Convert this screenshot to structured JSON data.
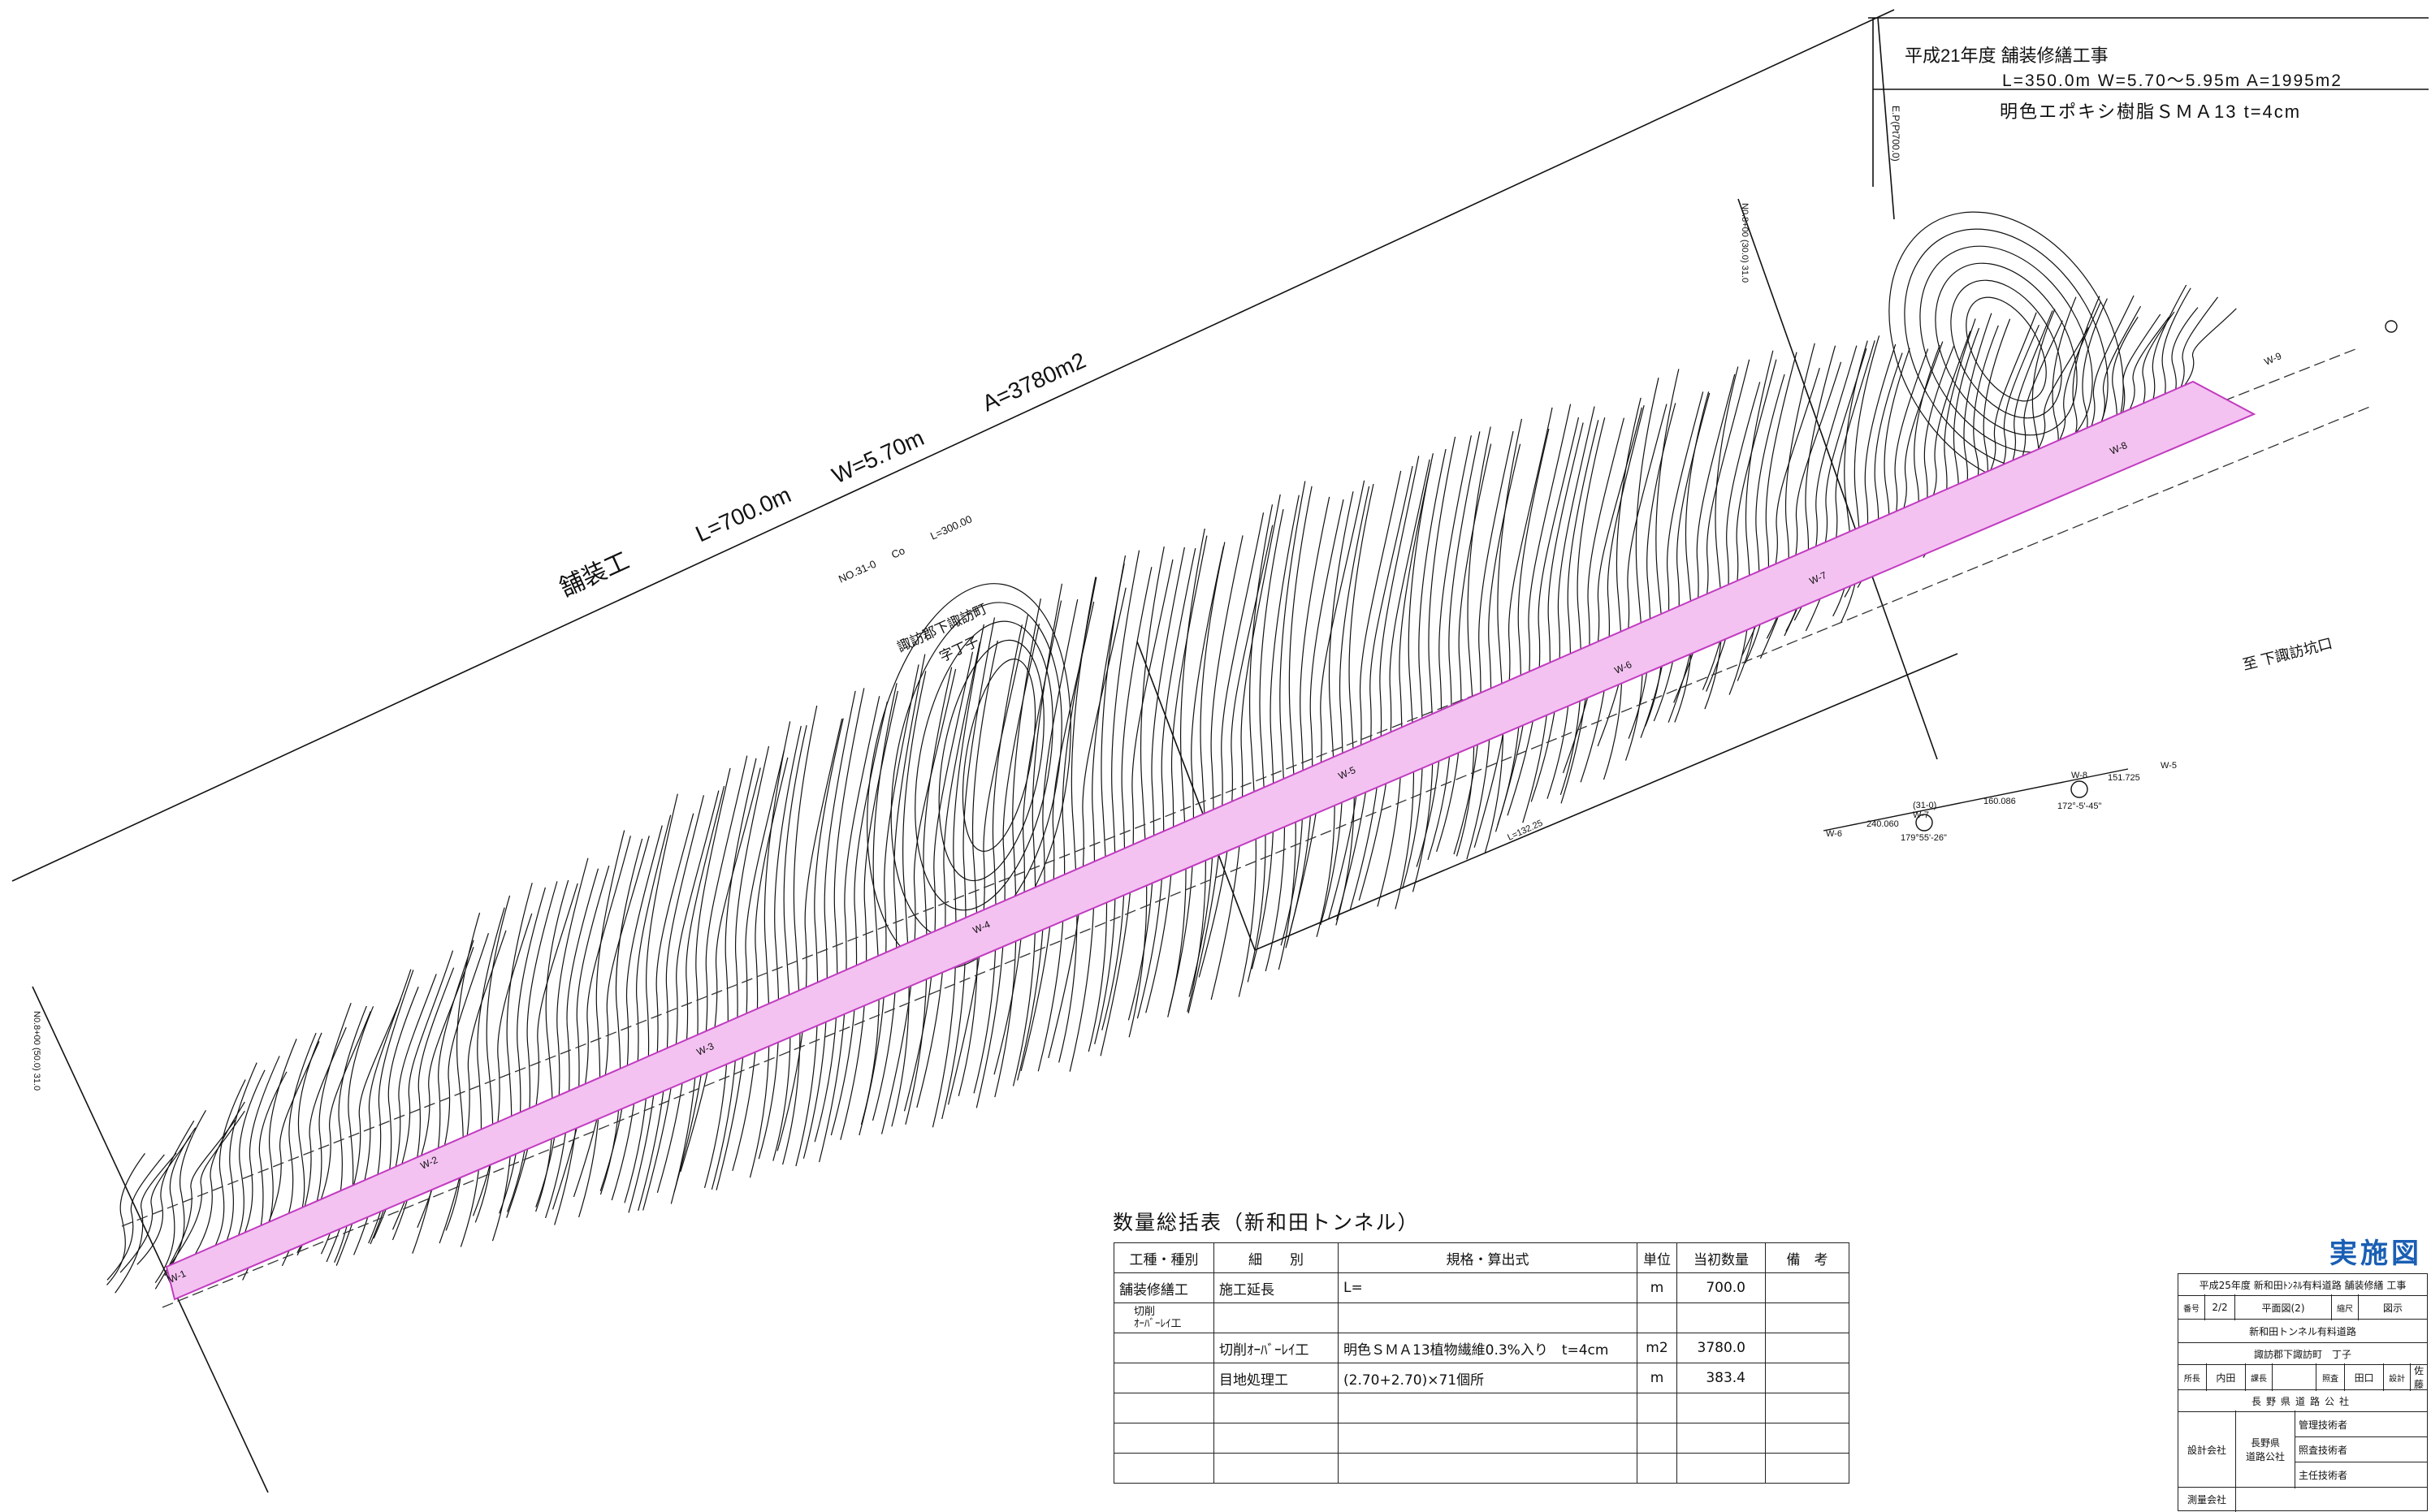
{
  "header": {
    "project": "平成21年度 舗装修繕工事",
    "dims": "L=350.0m W=5.70～5.95m A=1995m2",
    "material": "明色エポキシ樹脂ＳＭＡ13 t=4cm",
    "ep_label": "E.P(Pt700.0)"
  },
  "plan": {
    "pave_label": "舗装工",
    "L": "L=700.0m",
    "W": "W=5.70m",
    "A": "A=3780m2",
    "no": "NO.31-0",
    "co": "Co",
    "l300": "L=300.00",
    "place1": "諏訪郡下諏訪町",
    "place2": "字丁子",
    "to_dest": "至 下諏訪坑口",
    "l_bottom": "L=132.25",
    "station_right": "N0.8+00 (30.0) 31.0",
    "station_left": "N0.8+00 (50.0) 31.0",
    "w_labels": [
      "W-1",
      "W-2",
      "W-3",
      "W-4",
      "W-5",
      "W-6",
      "W-7",
      "W-8",
      "W-9"
    ],
    "ip_labels": {
      "w6": "W-6",
      "d1": "240.060",
      "w7": "(31-0)\nW-7",
      "d2": "160.086",
      "ang1": "179°55'-26\"",
      "w8": "W-8",
      "d3": "151.725",
      "w5": "W-5",
      "ang2": "172°-5'-45\""
    }
  },
  "summary": {
    "title": "数量総括表（新和田トンネル）",
    "headers": [
      "工種・種別",
      "細　　別",
      "規格・算出式",
      "単位",
      "当初数量",
      "備　考"
    ],
    "rows": [
      [
        "舗装修繕工",
        "施工延長",
        "L=",
        "m",
        "700.0",
        ""
      ],
      [
        "切削\nｵｰﾊﾞｰﾚｲ工",
        "",
        "",
        "",
        "",
        ""
      ],
      [
        "",
        "切削ｵｰﾊﾞｰﾚｲ工",
        "明色ＳＭＡ13植物繊維0.3%入り　t=4cm",
        "m2",
        "3780.0",
        ""
      ],
      [
        "",
        "目地処理工",
        "(2.70+2.70)×71個所",
        "m",
        "383.4",
        ""
      ],
      [
        "",
        "",
        "",
        "",
        "",
        ""
      ],
      [
        "",
        "",
        "",
        "",
        "",
        ""
      ],
      [
        "",
        "",
        "",
        "",
        "",
        ""
      ]
    ]
  },
  "stamp": "実施図",
  "title_block": {
    "project": "平成25年度 新和田ﾄﾝﾈﾙ有料道路 舗装修繕 工事",
    "no_label": "番号",
    "no": "2/2",
    "drawing": "平面図(2)",
    "scale_label": "縮尺",
    "scale": "図示",
    "road": "新和田トンネル有料道路",
    "location": "諏訪郡下諏訪町　丁子",
    "sig": [
      "所長",
      "内田",
      "課長",
      "",
      "照査",
      "田口",
      "設計",
      "佐藤"
    ],
    "org": "長野県道路公社",
    "design_co_label": "設計会社",
    "design_co": "長野県\n道路公社",
    "roles": [
      "管理技術者",
      "照査技術者",
      "主任技術者"
    ],
    "survey_co_label": "測量会社"
  }
}
